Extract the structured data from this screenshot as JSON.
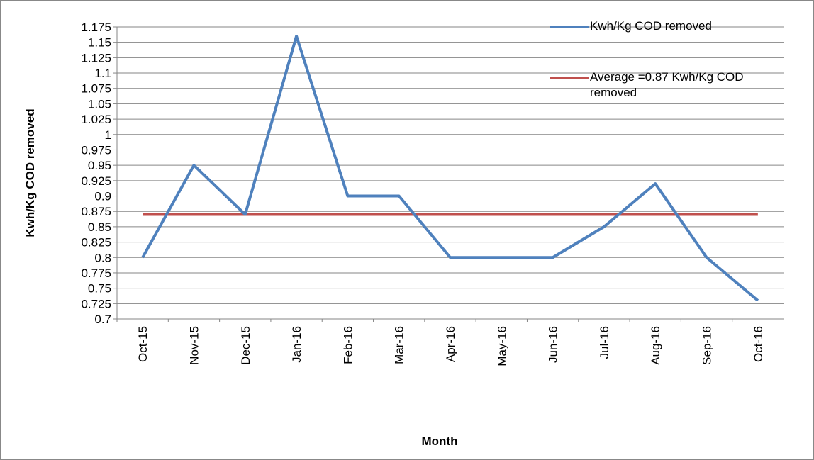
{
  "chart_data": {
    "type": "line",
    "x_label": "Month",
    "y_label": "Kwh/Kg COD removed",
    "categories": [
      "Oct-15",
      "Nov-15",
      "Dec-15",
      "Jan-16",
      "Feb-16",
      "Mar-16",
      "Apr-16",
      "May-16",
      "Jun-16",
      "Jul-16",
      "Aug-16",
      "Sep-16",
      "Oct-16"
    ],
    "series": [
      {
        "name": "Kwh/Kg COD removed",
        "color": "#4f81bd",
        "values": [
          0.8,
          0.95,
          0.87,
          1.16,
          0.9,
          0.9,
          0.8,
          0.8,
          0.8,
          0.85,
          0.92,
          0.8,
          0.73
        ]
      },
      {
        "name": "Average =0.87 Kwh/Kg COD removed",
        "color": "#c0504d",
        "values": [
          0.87,
          0.87,
          0.87,
          0.87,
          0.87,
          0.87,
          0.87,
          0.87,
          0.87,
          0.87,
          0.87,
          0.87,
          0.87
        ]
      }
    ],
    "ylim": [
      0.7,
      1.175
    ],
    "yticks": [
      0.7,
      0.725,
      0.75,
      0.775,
      0.8,
      0.825,
      0.85,
      0.875,
      0.9,
      0.925,
      0.95,
      0.975,
      1,
      1.025,
      1.05,
      1.075,
      1.1,
      1.125,
      1.15,
      1.175
    ],
    "grid": true,
    "legend": "top-right"
  }
}
